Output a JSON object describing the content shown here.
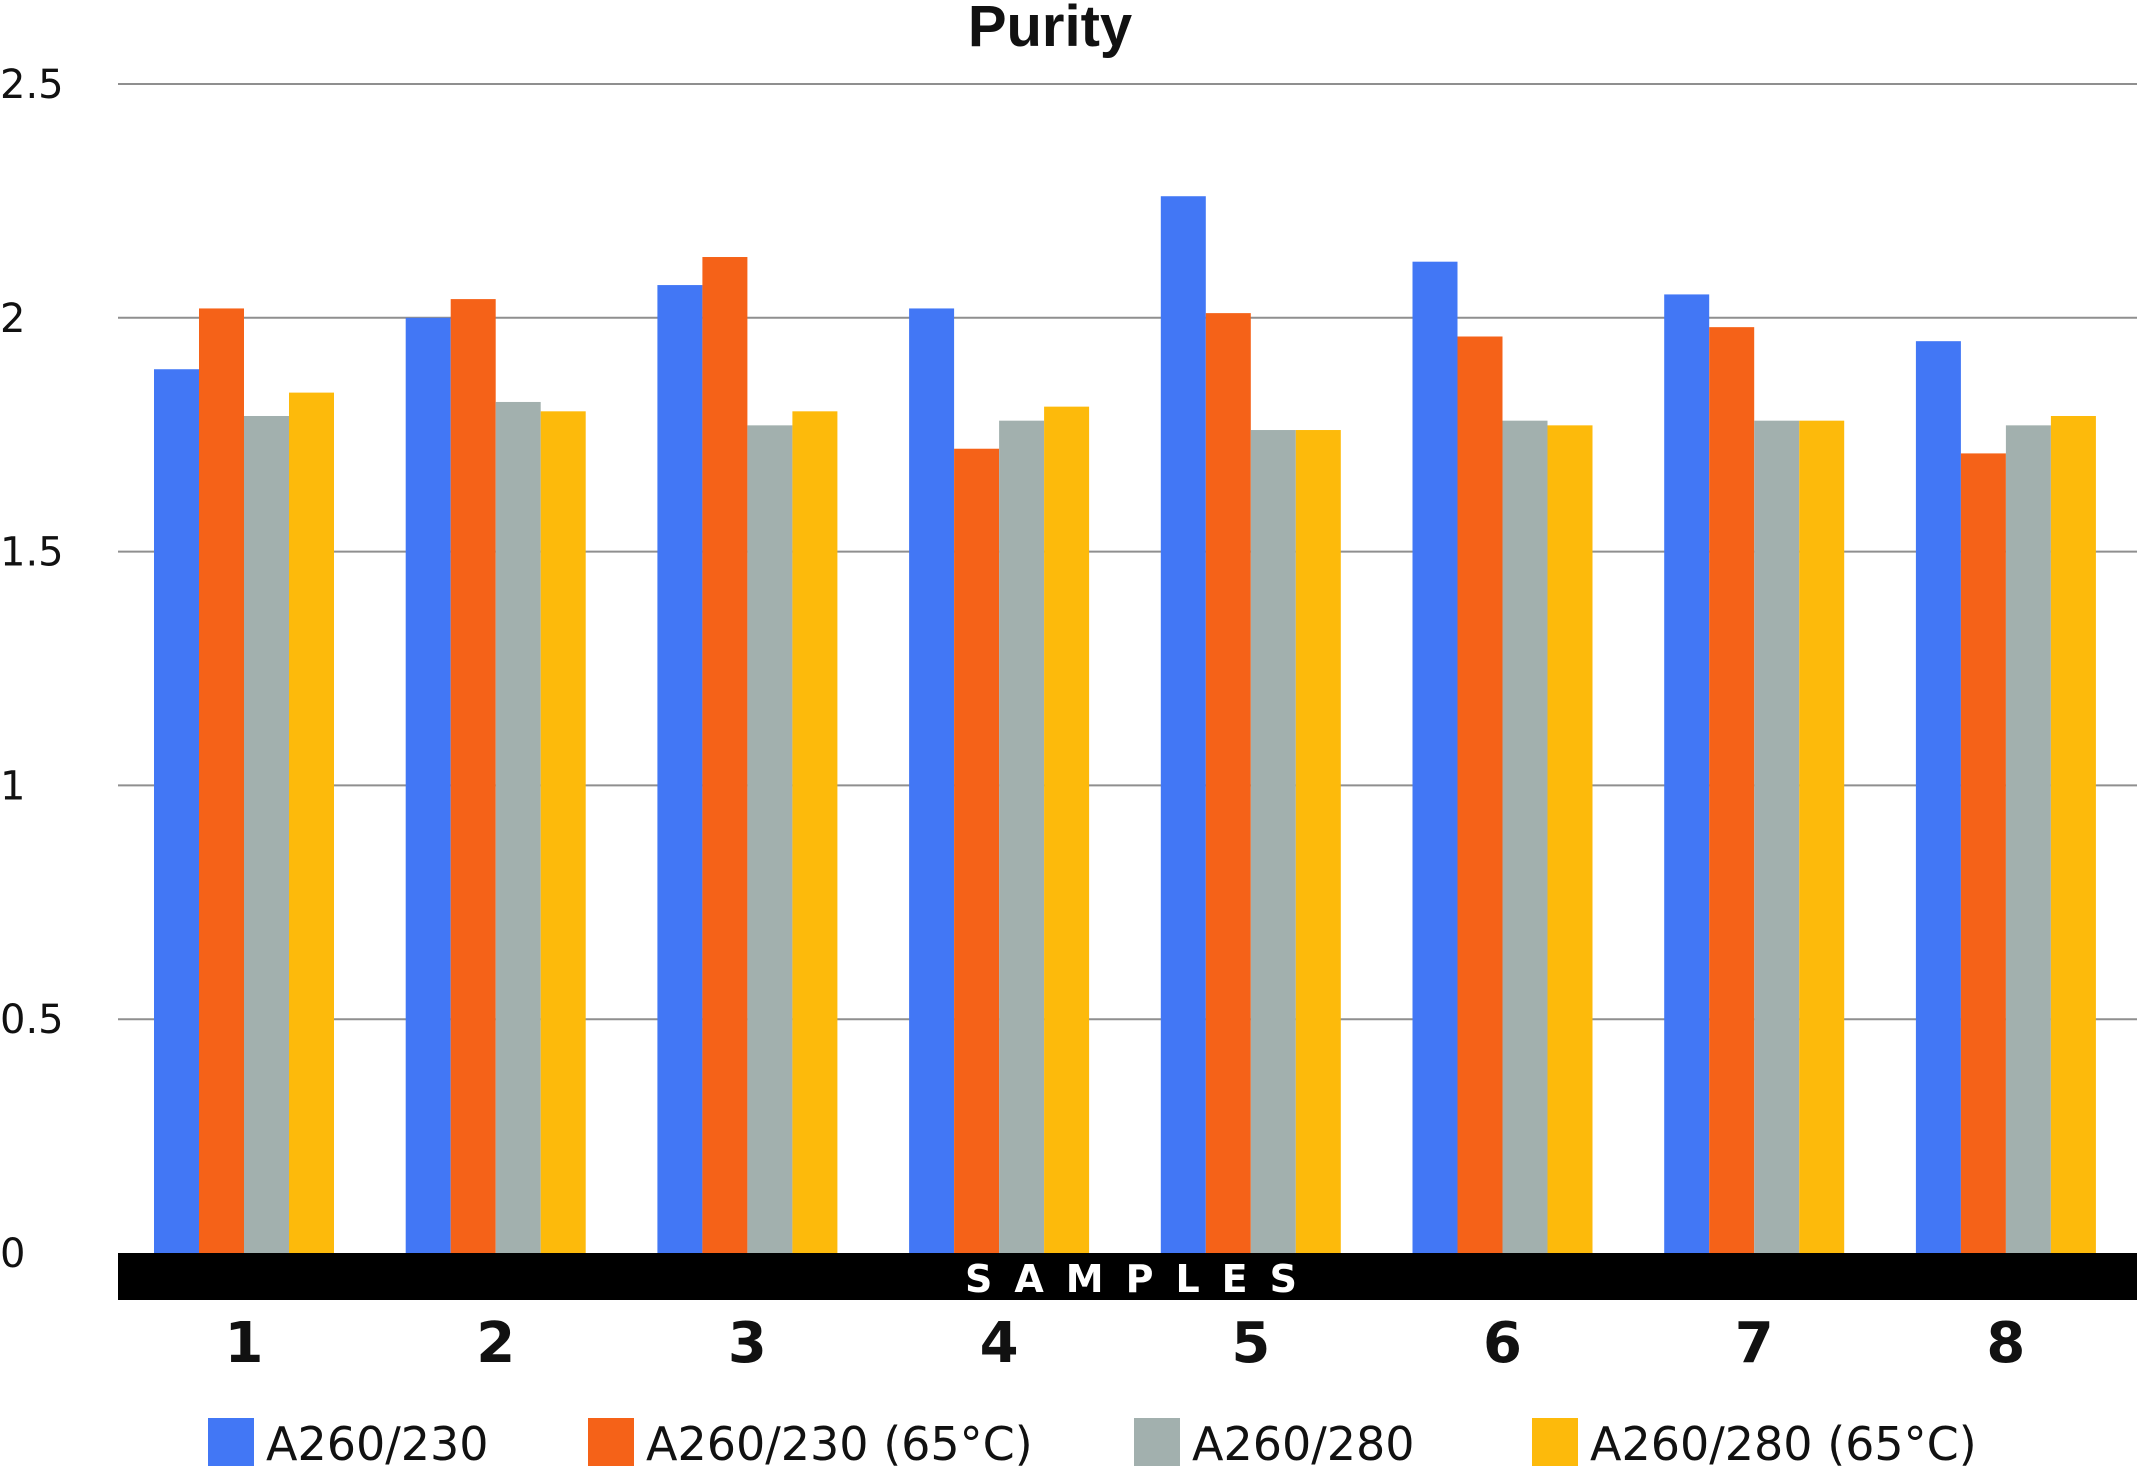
{
  "chart_data": {
    "type": "bar",
    "title": "Purity",
    "xlabel": "SAMPLES",
    "ylabel": "",
    "categories": [
      "1",
      "2",
      "3",
      "4",
      "5",
      "6",
      "7",
      "8"
    ],
    "ylim": [
      0,
      2.5
    ],
    "yticks": [
      "0",
      "0.5",
      "1",
      "1.5",
      "2",
      "2.5"
    ],
    "grid": true,
    "legend_position": "bottom",
    "series": [
      {
        "name": "A260/230",
        "color": "#4277F5",
        "values": [
          1.89,
          2.0,
          2.07,
          2.02,
          2.26,
          2.12,
          2.05,
          1.95
        ]
      },
      {
        "name": "A260/230 (65°C)",
        "color": "#F56218",
        "values": [
          2.02,
          2.04,
          2.13,
          1.72,
          2.01,
          1.96,
          1.98,
          1.71
        ]
      },
      {
        "name": "A260/280",
        "color": "#A2B0AE",
        "values": [
          1.79,
          1.82,
          1.77,
          1.78,
          1.76,
          1.78,
          1.78,
          1.77
        ]
      },
      {
        "name": "A260/280 (65°C)",
        "color": "#FDBA0B",
        "values": [
          1.84,
          1.8,
          1.8,
          1.81,
          1.76,
          1.77,
          1.78,
          1.79
        ]
      }
    ]
  }
}
